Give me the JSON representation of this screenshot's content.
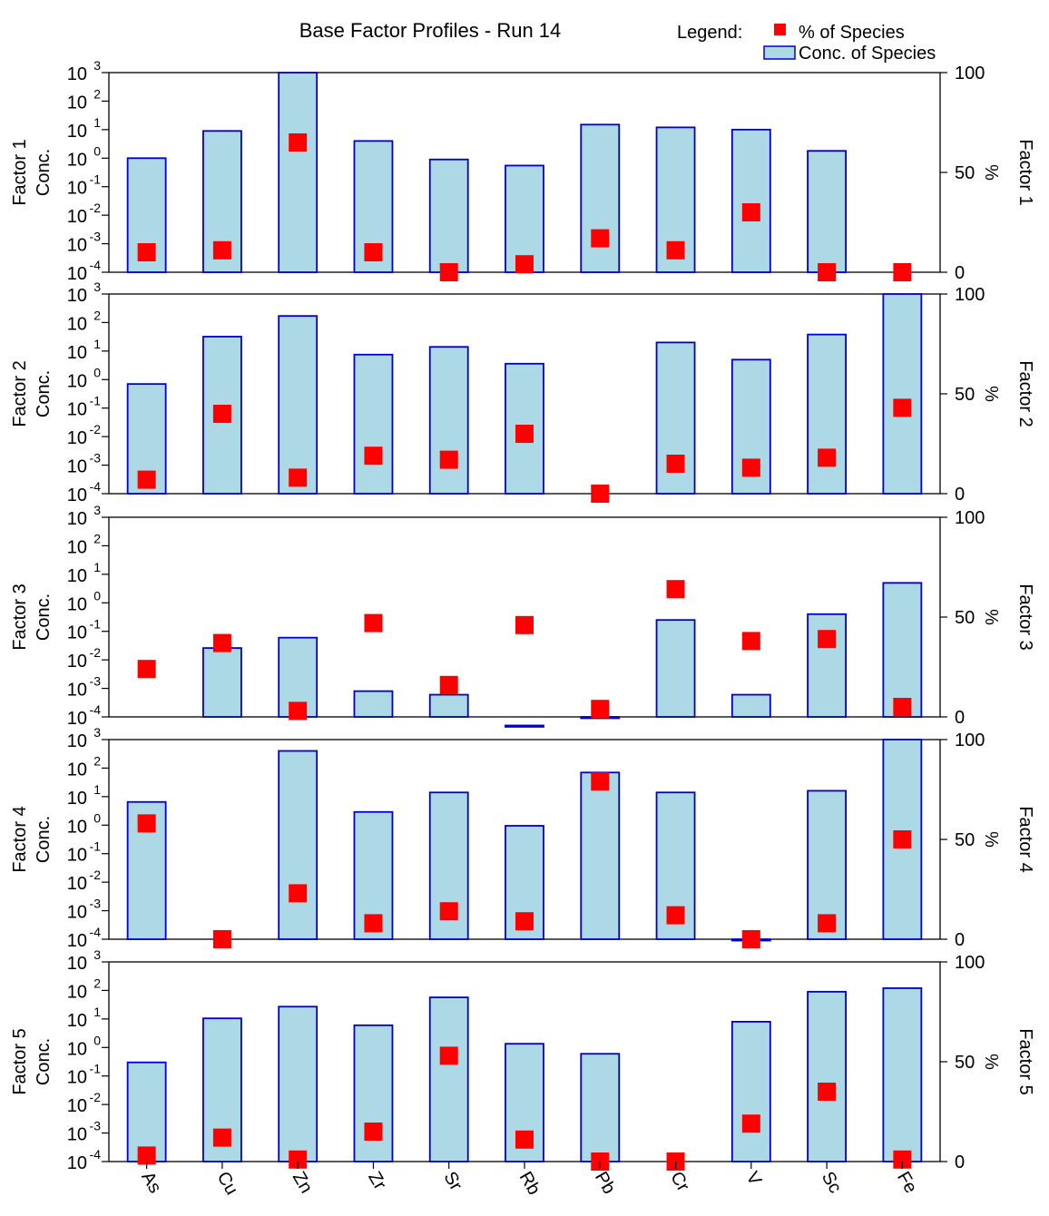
{
  "chart_data": {
    "type": "bar",
    "title": "Base Factor Profiles - Run 14",
    "legend": {
      "heading": "Legend:",
      "placement": "top-right",
      "entries": [
        {
          "label": "% of Species",
          "marker": "red-square",
          "color": "#ff0000"
        },
        {
          "label": "Conc. of Species",
          "marker": "bar",
          "color": "#add8e6"
        }
      ]
    },
    "categories": [
      "As",
      "Cu",
      "Zn",
      "Zr",
      "Sr",
      "Rb",
      "Pb",
      "Cr",
      "V",
      "Sc",
      "Fe"
    ],
    "left_axis": {
      "scale": "log",
      "range": [
        0.0001,
        1000
      ],
      "ticks": [
        {
          "base": "10",
          "exp": "-4"
        },
        {
          "base": "10",
          "exp": "-3"
        },
        {
          "base": "10",
          "exp": "-2"
        },
        {
          "base": "10",
          "exp": "-1"
        },
        {
          "base": "10",
          "exp": "0"
        },
        {
          "base": "10",
          "exp": "1"
        },
        {
          "base": "10",
          "exp": "2"
        },
        {
          "base": "10",
          "exp": "3"
        }
      ]
    },
    "right_axis": {
      "label": "%",
      "range": [
        0,
        100
      ],
      "ticks": [
        "0",
        "50",
        "100"
      ]
    },
    "colors": {
      "bar_fill": "#add8e6",
      "bar_stroke": "#0000cd",
      "marker": "#ff0000"
    },
    "factors": [
      {
        "label": [
          "Factor 1",
          "Conc."
        ],
        "right_label": "Factor 1",
        "conc": [
          1.0,
          9.0,
          1100,
          4.0,
          0.9,
          0.55,
          15,
          12,
          10,
          1.8,
          null
        ],
        "percent": [
          10,
          11,
          65,
          10,
          0,
          4,
          17,
          11,
          30,
          0,
          0
        ]
      },
      {
        "label": [
          "Factor 2",
          "Conc."
        ],
        "right_label": "Factor 2",
        "conc": [
          0.7,
          32,
          170,
          7.5,
          14,
          3.6,
          null,
          20,
          5.0,
          38,
          2300
        ],
        "percent": [
          7,
          40,
          8,
          19,
          17,
          30,
          0,
          15,
          13,
          18,
          43
        ]
      },
      {
        "label": [
          "Factor 3",
          "Conc."
        ],
        "right_label": "Factor 3",
        "conc": [
          null,
          0.026,
          0.06,
          0.0008,
          0.0006,
          5e-05,
          0.0001,
          0.25,
          0.0006,
          0.4,
          5.0
        ],
        "percent": [
          24,
          37,
          3,
          47,
          16,
          46,
          4,
          64,
          38,
          39,
          5
        ]
      },
      {
        "label": [
          "Factor 4",
          "Conc."
        ],
        "right_label": "Factor 4",
        "conc": [
          6.5,
          null,
          400,
          2.9,
          14,
          0.95,
          70,
          14,
          0.0001,
          16,
          2100
        ],
        "percent": [
          58,
          0,
          23,
          8,
          14,
          9,
          79,
          12,
          0,
          8,
          50
        ]
      },
      {
        "label": [
          "Factor 5",
          "Conc."
        ],
        "right_label": "Factor 5",
        "conc": [
          0.3,
          10.5,
          27,
          6.0,
          57,
          1.35,
          0.6,
          null,
          8.0,
          90,
          120
        ],
        "percent": [
          3,
          12,
          1,
          15,
          53,
          11,
          0,
          0,
          19,
          35,
          1
        ]
      }
    ]
  }
}
